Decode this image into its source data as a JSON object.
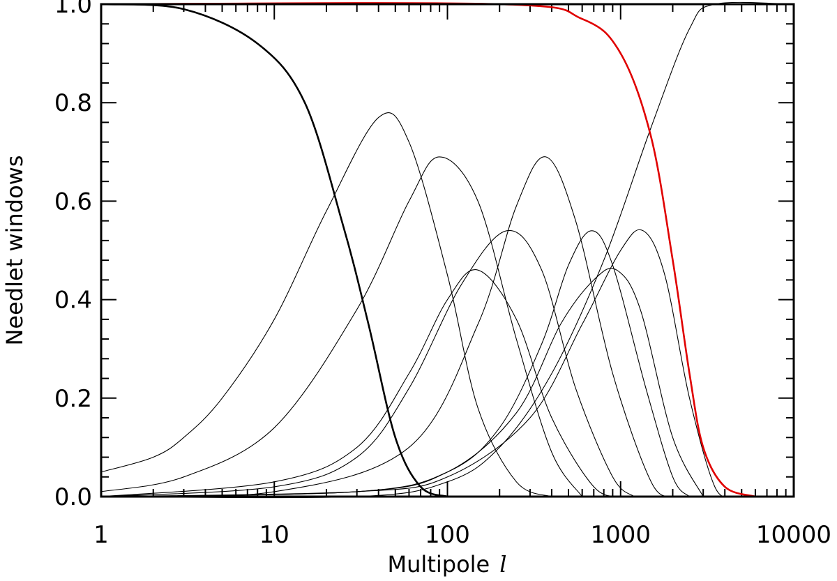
{
  "chart_data": {
    "type": "line",
    "xlabel": "Multipole",
    "xlabel_var": "l",
    "ylabel": "Needlet windows",
    "xscale": "log",
    "xlim": [
      1,
      10000
    ],
    "ylim": [
      0,
      1
    ],
    "x_ticks": [
      1,
      10,
      100,
      1000,
      10000
    ],
    "x_tick_labels": [
      "1",
      "10",
      "100",
      "1000",
      "10000"
    ],
    "y_ticks": [
      0,
      0.2,
      0.4,
      0.6,
      0.8,
      1.0
    ],
    "y_tick_labels": [
      "0.0",
      "0.2",
      "0.4",
      "0.6",
      "0.8",
      "1.0"
    ],
    "grid": false,
    "legend": "none",
    "series": [
      {
        "color": "#000000",
        "kind": "lowpass",
        "points": [
          [
            1,
            1.0
          ],
          [
            3,
            0.99
          ],
          [
            8,
            0.92
          ],
          [
            15,
            0.8
          ],
          [
            25,
            0.55
          ],
          [
            35,
            0.35
          ],
          [
            50,
            0.12
          ],
          [
            70,
            0.02
          ],
          [
            100,
            0.0
          ]
        ]
      },
      {
        "color": "#000000",
        "kind": "band",
        "points": [
          [
            1,
            0.05
          ],
          [
            2,
            0.08
          ],
          [
            3,
            0.12
          ],
          [
            5,
            0.2
          ],
          [
            10,
            0.36
          ],
          [
            20,
            0.58
          ],
          [
            40,
            0.77
          ],
          [
            60,
            0.72
          ],
          [
            100,
            0.45
          ],
          [
            150,
            0.18
          ],
          [
            250,
            0.03
          ],
          [
            400,
            0.0
          ]
        ]
      },
      {
        "color": "#000000",
        "kind": "band",
        "points": [
          [
            1,
            0.01
          ],
          [
            3,
            0.04
          ],
          [
            10,
            0.14
          ],
          [
            30,
            0.38
          ],
          [
            60,
            0.6
          ],
          [
            90,
            0.69
          ],
          [
            150,
            0.6
          ],
          [
            250,
            0.32
          ],
          [
            400,
            0.09
          ],
          [
            600,
            0.0
          ]
        ]
      },
      {
        "color": "#000000",
        "kind": "band",
        "points": [
          [
            1,
            0.0
          ],
          [
            10,
            0.03
          ],
          [
            30,
            0.1
          ],
          [
            60,
            0.25
          ],
          [
            100,
            0.4
          ],
          [
            150,
            0.46
          ],
          [
            250,
            0.36
          ],
          [
            400,
            0.16
          ],
          [
            700,
            0.02
          ],
          [
            1000,
            0.0
          ]
        ]
      },
      {
        "color": "#000000",
        "kind": "band",
        "points": [
          [
            1,
            0.0
          ],
          [
            10,
            0.02
          ],
          [
            30,
            0.08
          ],
          [
            60,
            0.22
          ],
          [
            120,
            0.43
          ],
          [
            220,
            0.54
          ],
          [
            350,
            0.46
          ],
          [
            550,
            0.22
          ],
          [
            900,
            0.04
          ],
          [
            1200,
            0.0
          ]
        ]
      },
      {
        "color": "#000000",
        "kind": "band",
        "points": [
          [
            1,
            0.0
          ],
          [
            10,
            0.01
          ],
          [
            60,
            0.1
          ],
          [
            150,
            0.35
          ],
          [
            250,
            0.59
          ],
          [
            370,
            0.69
          ],
          [
            550,
            0.56
          ],
          [
            900,
            0.25
          ],
          [
            1500,
            0.03
          ],
          [
            2000,
            0.0
          ]
        ]
      },
      {
        "color": "#000000",
        "kind": "band",
        "points": [
          [
            1,
            0.0
          ],
          [
            30,
            0.01
          ],
          [
            100,
            0.05
          ],
          [
            200,
            0.14
          ],
          [
            350,
            0.31
          ],
          [
            500,
            0.47
          ],
          [
            680,
            0.54
          ],
          [
            900,
            0.47
          ],
          [
            1400,
            0.22
          ],
          [
            2000,
            0.04
          ],
          [
            2500,
            0.0
          ]
        ]
      },
      {
        "color": "#000000",
        "kind": "band",
        "points": [
          [
            1,
            0.0
          ],
          [
            30,
            0.01
          ],
          [
            100,
            0.05
          ],
          [
            250,
            0.17
          ],
          [
            450,
            0.35
          ],
          [
            700,
            0.44
          ],
          [
            950,
            0.46
          ],
          [
            1300,
            0.38
          ],
          [
            2000,
            0.12
          ],
          [
            3000,
            0.0
          ]
        ]
      },
      {
        "color": "#000000",
        "kind": "band",
        "points": [
          [
            1,
            0.0
          ],
          [
            30,
            0.01
          ],
          [
            100,
            0.04
          ],
          [
            300,
            0.16
          ],
          [
            600,
            0.35
          ],
          [
            1000,
            0.5
          ],
          [
            1350,
            0.54
          ],
          [
            1800,
            0.45
          ],
          [
            2500,
            0.2
          ],
          [
            3500,
            0.02
          ],
          [
            4500,
            0.0
          ]
        ]
      },
      {
        "color": "#000000",
        "kind": "highpass",
        "points": [
          [
            1,
            0.0
          ],
          [
            30,
            0.0
          ],
          [
            100,
            0.03
          ],
          [
            200,
            0.1
          ],
          [
            400,
            0.25
          ],
          [
            800,
            0.48
          ],
          [
            1500,
            0.75
          ],
          [
            2500,
            0.95
          ],
          [
            3500,
            1.0
          ],
          [
            10000,
            1.0
          ]
        ]
      },
      {
        "color": "#e00000",
        "kind": "beam",
        "points": [
          [
            1,
            1.0
          ],
          [
            200,
            1.0
          ],
          [
            600,
            0.97
          ],
          [
            1000,
            0.9
          ],
          [
            1500,
            0.73
          ],
          [
            2000,
            0.48
          ],
          [
            2500,
            0.25
          ],
          [
            3000,
            0.1
          ],
          [
            4000,
            0.02
          ],
          [
            6000,
            0.0
          ]
        ]
      }
    ]
  }
}
